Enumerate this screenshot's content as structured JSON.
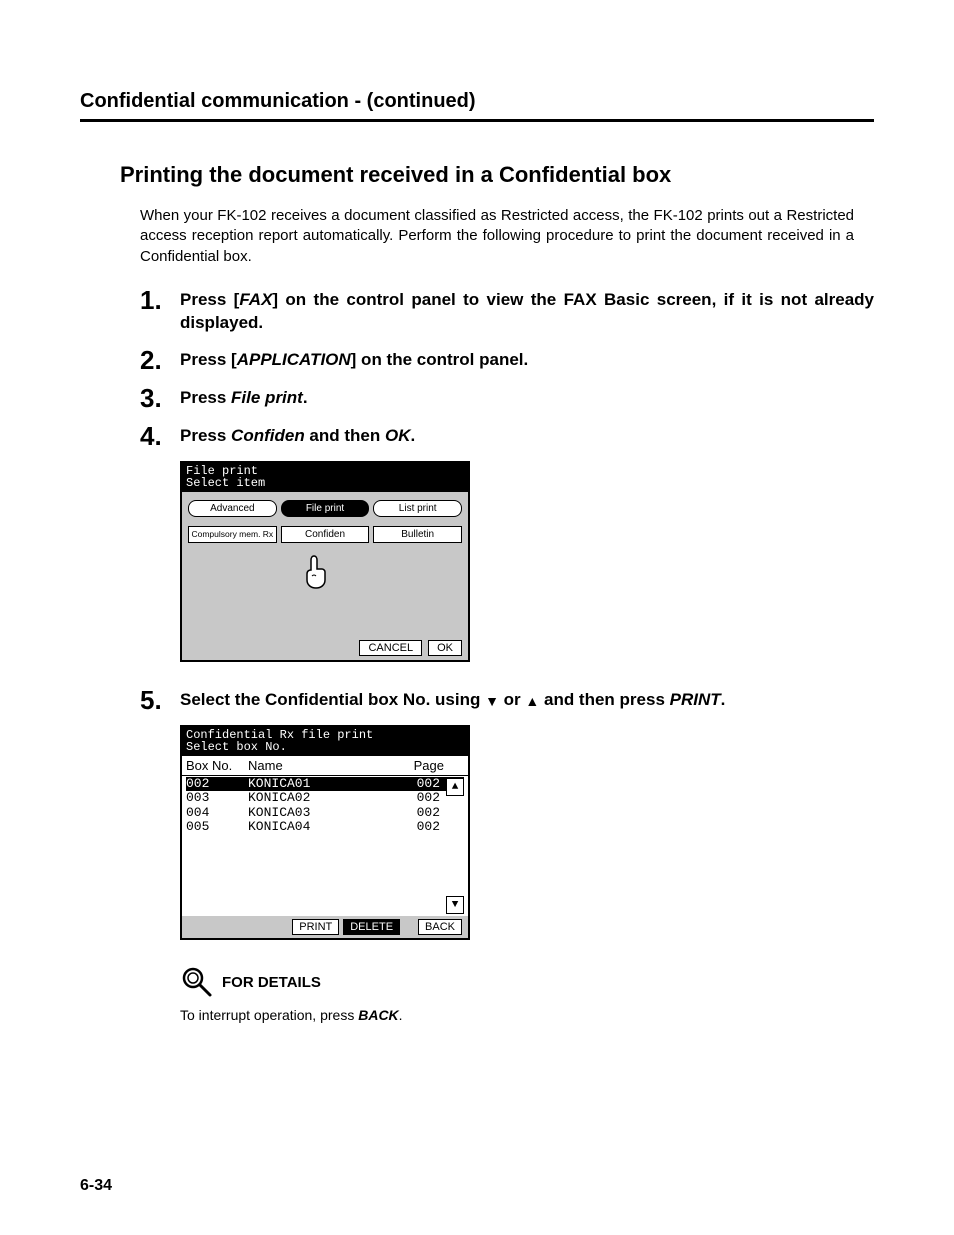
{
  "header": "Confidential communication -  (continued)",
  "section_title": "Printing the document received in a Confidential box",
  "intro": "When your FK-102 receives a document classified as Restricted access, the FK-102 prints out a Restricted access reception report automatically.  Perform the following procedure to print the document received in a Confidential box.",
  "steps": {
    "s1_num": "1.",
    "s1_a": "Press [",
    "s1_b": "FAX",
    "s1_c": "] on the control panel to view the FAX Basic screen, if it is not already displayed.",
    "s2_num": "2.",
    "s2_a": "Press [",
    "s2_b": "APPLICATION",
    "s2_c": "] on the control panel.",
    "s3_num": "3.",
    "s3_a": "Press ",
    "s3_b": "File print",
    "s3_c": ".",
    "s4_num": "4.",
    "s4_a": "Press ",
    "s4_b": "Confiden",
    "s4_c": " and then ",
    "s4_d": "OK",
    "s4_e": ".",
    "s5_num": "5.",
    "s5_a": "Select the Confidential box No. using ",
    "s5_b": " or ",
    "s5_c": " and then press ",
    "s5_d": "PRINT",
    "s5_e": "."
  },
  "panel1": {
    "title_l1": "File print",
    "title_l2": "Select item",
    "tabs": {
      "advanced": "Advanced",
      "file_print": "File print",
      "list_print": "List print"
    },
    "row2": {
      "compulsory": "Compulsory mem. Rx",
      "confiden": "Confiden",
      "bulletin": "Bulletin"
    },
    "footer": {
      "cancel": "CANCEL",
      "ok": "OK"
    }
  },
  "panel2": {
    "title_l1": "Confidential Rx file print",
    "title_l2": "Select box No.",
    "head": {
      "c1": "Box No.",
      "c2": "Name",
      "c3": "Page"
    },
    "rows": [
      {
        "c1": "002",
        "c2": "KONICA01",
        "c3": "002",
        "sel": true
      },
      {
        "c1": "003",
        "c2": "KONICA02",
        "c3": "002",
        "sel": false
      },
      {
        "c1": "004",
        "c2": "KONICA03",
        "c3": "002",
        "sel": false
      },
      {
        "c1": "005",
        "c2": "KONICA04",
        "c3": "002",
        "sel": false
      }
    ],
    "footer": {
      "print": "PRINT",
      "delete": "DELETE",
      "back": "BACK"
    },
    "arrows": {
      "up": "▲",
      "down": "▼"
    }
  },
  "details": {
    "heading": "FOR DETAILS",
    "body_a": "To interrupt operation, press ",
    "body_b": "BACK",
    "body_c": "."
  },
  "page_num": "6-34",
  "glyphs": {
    "tri_down": "▼",
    "tri_up": "▲"
  }
}
